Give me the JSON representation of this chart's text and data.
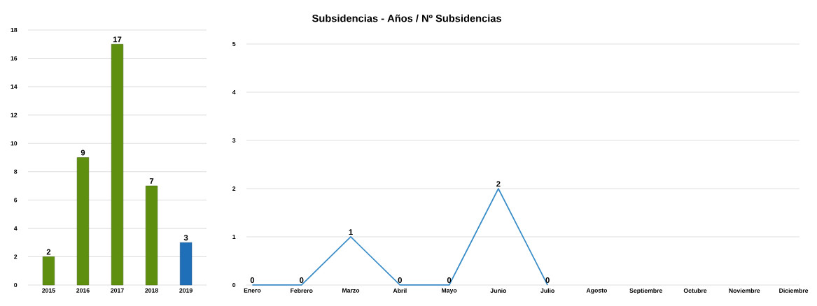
{
  "chart_data": [
    {
      "type": "bar",
      "categories": [
        "2015",
        "2016",
        "2017",
        "2018",
        "2019"
      ],
      "values": [
        2,
        9,
        17,
        7,
        3
      ],
      "colors": [
        "#5f8f0f",
        "#5f8f0f",
        "#5f8f0f",
        "#5f8f0f",
        "#1f6fb8"
      ],
      "ylim": [
        0,
        18
      ],
      "yticks": [
        0,
        2,
        4,
        6,
        8,
        10,
        12,
        14,
        16,
        18
      ],
      "grid": "y",
      "data_labels": true
    },
    {
      "type": "line",
      "title": "Subsidencias - Años / Nº Subsidencias",
      "categories": [
        "Enero",
        "Febrero",
        "Marzo",
        "Abril",
        "Mayo",
        "Junio",
        "Julio",
        "Agosto",
        "Septiembre",
        "Octubre",
        "Noviembre",
        "Diciembre"
      ],
      "values": [
        0,
        0,
        1,
        0,
        0,
        2,
        0,
        null,
        null,
        null,
        null,
        null
      ],
      "color": "#3a8dc8",
      "ylim": [
        0,
        5
      ],
      "yticks": [
        0,
        1,
        2,
        3,
        4,
        5
      ],
      "grid": "y",
      "data_labels": true,
      "line_style": "solid"
    }
  ]
}
